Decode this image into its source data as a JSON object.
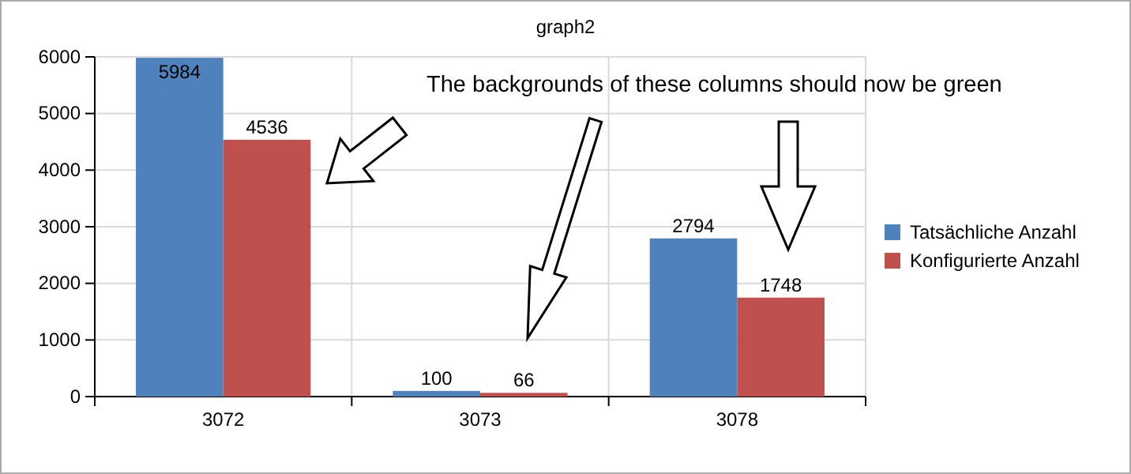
{
  "chart_data": {
    "type": "bar",
    "title": "graph2",
    "categories": [
      "3072",
      "3073",
      "3078"
    ],
    "series": [
      {
        "name": "Tatsächliche Anzahl",
        "color": "#4f81bd",
        "values": [
          5984,
          100,
          2794
        ]
      },
      {
        "name": "Konfigurierte Anzahl",
        "color": "#c0504d",
        "values": [
          4536,
          66,
          1748
        ]
      }
    ],
    "ylim": [
      0,
      6000
    ],
    "yticks": [
      0,
      1000,
      2000,
      3000,
      4000,
      5000,
      6000
    ],
    "grid": true,
    "legend": "right",
    "data_labels": true,
    "annotations": [
      "The backgrounds of these columns should now be green"
    ]
  }
}
